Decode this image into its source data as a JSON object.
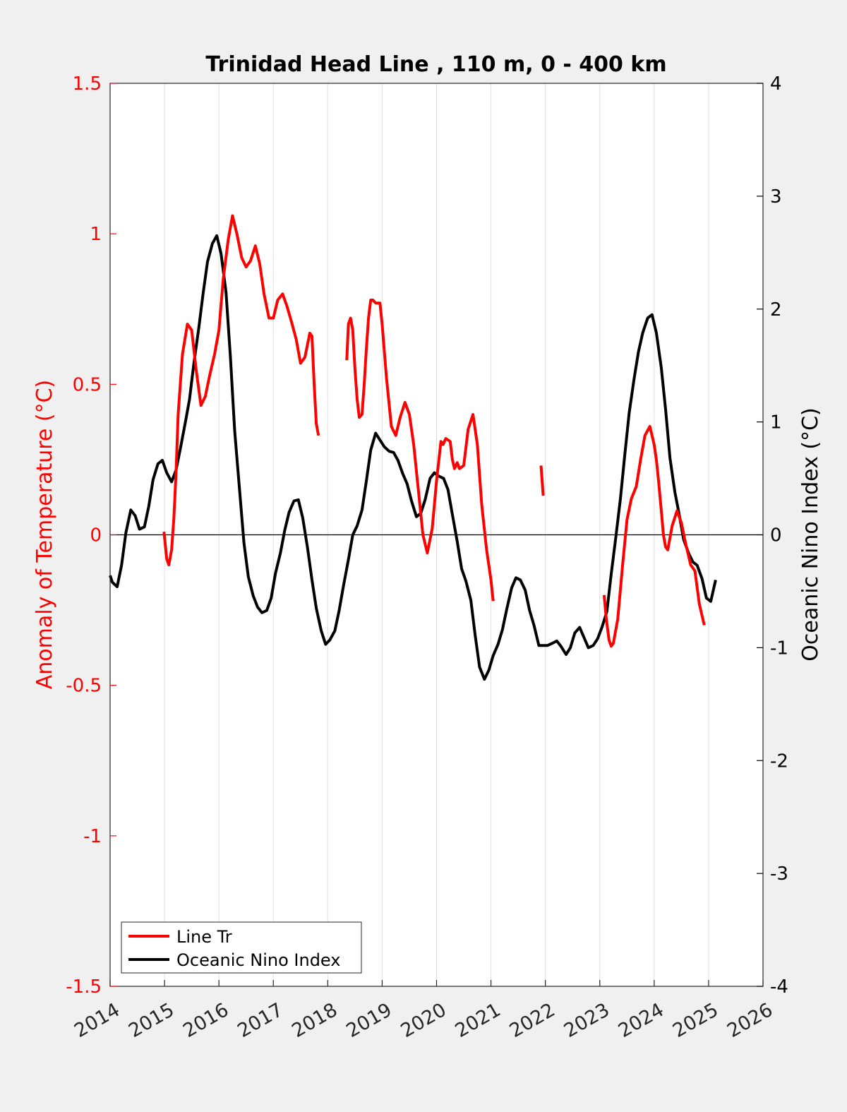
{
  "chart_data": {
    "type": "line",
    "title": "Trinidad Head Line , 110 m, 0 - 400 km",
    "xlabel": "",
    "xlim": [
      2014,
      2026
    ],
    "xticks": [
      "2014",
      "2015",
      "2016",
      "2017",
      "2018",
      "2019",
      "2020",
      "2021",
      "2022",
      "2023",
      "2024",
      "2025",
      "2026"
    ],
    "left_axis": {
      "label": "Anomaly of Temperature (°C)",
      "color": "#ff0000",
      "ylim": [
        -1.5,
        1.5
      ],
      "ticks": [
        "-1.5",
        "-1",
        "-0.5",
        "0",
        "0.5",
        "1",
        "1.5"
      ]
    },
    "right_axis": {
      "label": "Oceanic Nino Index (°C)",
      "color": "#000000",
      "ylim": [
        -4,
        4
      ],
      "ticks": [
        "-4",
        "-3",
        "-2",
        "-1",
        "0",
        "1",
        "2",
        "3",
        "4"
      ]
    },
    "grid": "vertical",
    "zero_line": true,
    "legend_position": "bottom-left",
    "series": [
      {
        "name": "Line Tr",
        "axis": "left",
        "color": "#ff0000",
        "segments": [
          [
            [
              2014.99,
              0.01
            ],
            [
              2015.04,
              -0.08
            ],
            [
              2015.08,
              -0.1
            ],
            [
              2015.13,
              -0.05
            ],
            [
              2015.17,
              0.05
            ],
            [
              2015.21,
              0.2
            ],
            [
              2015.25,
              0.4
            ],
            [
              2015.33,
              0.6
            ],
            [
              2015.42,
              0.7
            ],
            [
              2015.5,
              0.68
            ],
            [
              2015.58,
              0.55
            ],
            [
              2015.67,
              0.43
            ],
            [
              2015.75,
              0.46
            ],
            [
              2015.83,
              0.53
            ],
            [
              2015.92,
              0.6
            ],
            [
              2016.0,
              0.68
            ],
            [
              2016.08,
              0.85
            ],
            [
              2016.17,
              0.98
            ],
            [
              2016.25,
              1.06
            ],
            [
              2016.33,
              1.0
            ],
            [
              2016.42,
              0.92
            ],
            [
              2016.5,
              0.89
            ],
            [
              2016.58,
              0.91
            ],
            [
              2016.67,
              0.96
            ],
            [
              2016.75,
              0.9
            ],
            [
              2016.83,
              0.8
            ],
            [
              2016.92,
              0.72
            ],
            [
              2017.0,
              0.72
            ],
            [
              2017.08,
              0.78
            ],
            [
              2017.17,
              0.8
            ],
            [
              2017.25,
              0.76
            ],
            [
              2017.33,
              0.71
            ],
            [
              2017.42,
              0.65
            ],
            [
              2017.5,
              0.57
            ],
            [
              2017.58,
              0.59
            ],
            [
              2017.67,
              0.67
            ],
            [
              2017.71,
              0.66
            ],
            [
              2017.75,
              0.5
            ],
            [
              2017.79,
              0.37
            ],
            [
              2017.83,
              0.33
            ]
          ],
          [
            [
              2018.35,
              0.58
            ],
            [
              2018.38,
              0.7
            ],
            [
              2018.42,
              0.72
            ],
            [
              2018.46,
              0.68
            ],
            [
              2018.5,
              0.55
            ],
            [
              2018.54,
              0.45
            ],
            [
              2018.58,
              0.39
            ],
            [
              2018.63,
              0.4
            ],
            [
              2018.67,
              0.5
            ],
            [
              2018.71,
              0.62
            ],
            [
              2018.75,
              0.72
            ],
            [
              2018.79,
              0.78
            ],
            [
              2018.83,
              0.78
            ],
            [
              2018.88,
              0.77
            ],
            [
              2018.92,
              0.77
            ],
            [
              2018.96,
              0.77
            ],
            [
              2019.0,
              0.7
            ],
            [
              2019.08,
              0.52
            ],
            [
              2019.17,
              0.36
            ],
            [
              2019.25,
              0.33
            ],
            [
              2019.33,
              0.39
            ],
            [
              2019.42,
              0.44
            ],
            [
              2019.5,
              0.4
            ],
            [
              2019.58,
              0.3
            ],
            [
              2019.67,
              0.14
            ],
            [
              2019.75,
              0.0
            ],
            [
              2019.83,
              -0.06
            ],
            [
              2019.92,
              0.02
            ],
            [
              2020.0,
              0.18
            ],
            [
              2020.08,
              0.31
            ],
            [
              2020.12,
              0.3
            ],
            [
              2020.17,
              0.32
            ],
            [
              2020.25,
              0.31
            ],
            [
              2020.29,
              0.25
            ],
            [
              2020.33,
              0.22
            ],
            [
              2020.38,
              0.24
            ],
            [
              2020.42,
              0.22
            ],
            [
              2020.5,
              0.23
            ],
            [
              2020.58,
              0.35
            ],
            [
              2020.67,
              0.4
            ],
            [
              2020.75,
              0.3
            ],
            [
              2020.83,
              0.1
            ],
            [
              2020.92,
              -0.05
            ],
            [
              2021.0,
              -0.15
            ],
            [
              2021.04,
              -0.22
            ]
          ],
          [
            [
              2021.92,
              0.23
            ],
            [
              2021.96,
              0.13
            ]
          ],
          [
            [
              2023.08,
              -0.2
            ],
            [
              2023.12,
              -0.28
            ],
            [
              2023.17,
              -0.35
            ],
            [
              2023.21,
              -0.37
            ],
            [
              2023.25,
              -0.36
            ],
            [
              2023.33,
              -0.28
            ],
            [
              2023.42,
              -0.1
            ],
            [
              2023.5,
              0.05
            ],
            [
              2023.58,
              0.12
            ],
            [
              2023.67,
              0.16
            ],
            [
              2023.75,
              0.25
            ],
            [
              2023.83,
              0.33
            ],
            [
              2023.92,
              0.36
            ],
            [
              2024.0,
              0.3
            ],
            [
              2024.04,
              0.25
            ],
            [
              2024.08,
              0.18
            ],
            [
              2024.13,
              0.08
            ],
            [
              2024.17,
              0.0
            ],
            [
              2024.21,
              -0.04
            ],
            [
              2024.25,
              -0.05
            ],
            [
              2024.33,
              0.03
            ],
            [
              2024.42,
              0.08
            ],
            [
              2024.5,
              0.04
            ],
            [
              2024.58,
              -0.03
            ],
            [
              2024.67,
              -0.1
            ],
            [
              2024.75,
              -0.12
            ],
            [
              2024.83,
              -0.23
            ],
            [
              2024.92,
              -0.3
            ]
          ]
        ]
      },
      {
        "name": "Oceanic Nino Index",
        "axis": "right",
        "color": "#000000",
        "segments": [
          [
            [
              2014.0,
              -0.36
            ],
            [
              2014.04,
              -0.42
            ],
            [
              2014.13,
              -0.46
            ],
            [
              2014.21,
              -0.27
            ],
            [
              2014.29,
              0.02
            ],
            [
              2014.38,
              0.22
            ],
            [
              2014.46,
              0.17
            ],
            [
              2014.54,
              0.05
            ],
            [
              2014.63,
              0.07
            ],
            [
              2014.71,
              0.25
            ],
            [
              2014.79,
              0.49
            ],
            [
              2014.88,
              0.63
            ],
            [
              2014.96,
              0.66
            ],
            [
              2015.04,
              0.55
            ],
            [
              2015.13,
              0.47
            ],
            [
              2015.21,
              0.57
            ],
            [
              2015.29,
              0.76
            ],
            [
              2015.38,
              0.99
            ],
            [
              2015.46,
              1.2
            ],
            [
              2015.54,
              1.52
            ],
            [
              2015.63,
              1.83
            ],
            [
              2015.71,
              2.14
            ],
            [
              2015.79,
              2.42
            ],
            [
              2015.88,
              2.58
            ],
            [
              2015.96,
              2.65
            ],
            [
              2016.04,
              2.49
            ],
            [
              2016.13,
              2.15
            ],
            [
              2016.21,
              1.58
            ],
            [
              2016.29,
              0.92
            ],
            [
              2016.38,
              0.39
            ],
            [
              2016.46,
              -0.07
            ],
            [
              2016.54,
              -0.37
            ],
            [
              2016.63,
              -0.54
            ],
            [
              2016.71,
              -0.64
            ],
            [
              2016.79,
              -0.69
            ],
            [
              2016.88,
              -0.67
            ],
            [
              2016.96,
              -0.56
            ],
            [
              2017.04,
              -0.34
            ],
            [
              2017.13,
              -0.16
            ],
            [
              2017.21,
              0.04
            ],
            [
              2017.29,
              0.2
            ],
            [
              2017.38,
              0.3
            ],
            [
              2017.46,
              0.31
            ],
            [
              2017.54,
              0.15
            ],
            [
              2017.63,
              -0.12
            ],
            [
              2017.71,
              -0.4
            ],
            [
              2017.79,
              -0.65
            ],
            [
              2017.88,
              -0.85
            ],
            [
              2017.96,
              -0.97
            ],
            [
              2018.04,
              -0.93
            ],
            [
              2018.13,
              -0.85
            ],
            [
              2018.21,
              -0.67
            ],
            [
              2018.29,
              -0.45
            ],
            [
              2018.38,
              -0.22
            ],
            [
              2018.46,
              0.0
            ],
            [
              2018.54,
              0.08
            ],
            [
              2018.63,
              0.22
            ],
            [
              2018.71,
              0.48
            ],
            [
              2018.79,
              0.75
            ],
            [
              2018.88,
              0.9
            ],
            [
              2018.96,
              0.84
            ],
            [
              2019.04,
              0.78
            ],
            [
              2019.13,
              0.74
            ],
            [
              2019.21,
              0.73
            ],
            [
              2019.29,
              0.66
            ],
            [
              2019.38,
              0.54
            ],
            [
              2019.46,
              0.45
            ],
            [
              2019.54,
              0.3
            ],
            [
              2019.63,
              0.16
            ],
            [
              2019.71,
              0.19
            ],
            [
              2019.79,
              0.31
            ],
            [
              2019.88,
              0.5
            ],
            [
              2019.96,
              0.55
            ],
            [
              2020.04,
              0.52
            ],
            [
              2020.13,
              0.5
            ],
            [
              2020.21,
              0.4
            ],
            [
              2020.29,
              0.18
            ],
            [
              2020.38,
              -0.06
            ],
            [
              2020.46,
              -0.3
            ],
            [
              2020.54,
              -0.41
            ],
            [
              2020.63,
              -0.58
            ],
            [
              2020.71,
              -0.89
            ],
            [
              2020.79,
              -1.17
            ],
            [
              2020.88,
              -1.28
            ],
            [
              2020.96,
              -1.2
            ],
            [
              2021.04,
              -1.07
            ],
            [
              2021.13,
              -0.97
            ],
            [
              2021.21,
              -0.84
            ],
            [
              2021.29,
              -0.66
            ],
            [
              2021.38,
              -0.47
            ],
            [
              2021.46,
              -0.38
            ],
            [
              2021.54,
              -0.4
            ],
            [
              2021.63,
              -0.49
            ],
            [
              2021.71,
              -0.67
            ],
            [
              2021.79,
              -0.8
            ],
            [
              2021.88,
              -0.98
            ],
            [
              2021.96,
              -0.98
            ],
            [
              2022.04,
              -0.98
            ],
            [
              2022.13,
              -0.96
            ],
            [
              2022.21,
              -0.94
            ],
            [
              2022.29,
              -0.99
            ],
            [
              2022.38,
              -1.06
            ],
            [
              2022.46,
              -1.0
            ],
            [
              2022.54,
              -0.87
            ],
            [
              2022.63,
              -0.82
            ],
            [
              2022.71,
              -0.91
            ],
            [
              2022.79,
              -1.0
            ],
            [
              2022.88,
              -0.98
            ],
            [
              2022.96,
              -0.92
            ],
            [
              2023.04,
              -0.82
            ],
            [
              2023.13,
              -0.68
            ],
            [
              2023.21,
              -0.35
            ],
            [
              2023.29,
              -0.04
            ],
            [
              2023.38,
              0.32
            ],
            [
              2023.46,
              0.71
            ],
            [
              2023.54,
              1.08
            ],
            [
              2023.63,
              1.38
            ],
            [
              2023.71,
              1.62
            ],
            [
              2023.79,
              1.79
            ],
            [
              2023.88,
              1.92
            ],
            [
              2023.96,
              1.95
            ],
            [
              2024.04,
              1.79
            ],
            [
              2024.13,
              1.48
            ],
            [
              2024.21,
              1.11
            ],
            [
              2024.29,
              0.68
            ],
            [
              2024.38,
              0.38
            ],
            [
              2024.46,
              0.18
            ],
            [
              2024.54,
              -0.04
            ],
            [
              2024.63,
              -0.16
            ],
            [
              2024.71,
              -0.24
            ],
            [
              2024.79,
              -0.27
            ],
            [
              2024.88,
              -0.39
            ],
            [
              2024.96,
              -0.56
            ],
            [
              2025.04,
              -0.59
            ],
            [
              2025.13,
              -0.4
            ]
          ]
        ]
      }
    ]
  }
}
